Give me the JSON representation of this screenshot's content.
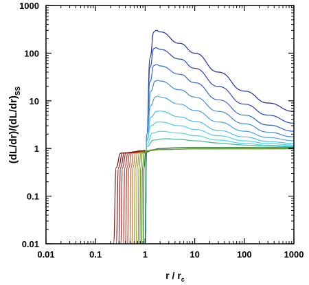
{
  "chart_data": {
    "type": "line",
    "xlabel": {
      "main": "r / r",
      "sub": "c"
    },
    "ylabel": {
      "main": "(dL/dr)/(dL/dr)",
      "sub": "SS"
    },
    "x_scale": "log",
    "y_scale": "log",
    "xlim": [
      0.01,
      1000
    ],
    "ylim": [
      0.01,
      1000
    ],
    "x_ticks": [
      0.01,
      0.1,
      1,
      10,
      100,
      1000
    ],
    "x_tick_labels": [
      "0.01",
      "0.1",
      "1",
      "10",
      "100",
      "1000"
    ],
    "y_ticks": [
      0.01,
      0.1,
      1,
      10,
      100,
      1000
    ],
    "y_tick_labels": [
      "0.01",
      "0.1",
      "1",
      "10",
      "100",
      "1000"
    ],
    "grid": false,
    "legend": "none",
    "series": [
      {
        "color": "#1a2a9a",
        "points": [
          [
            1.0,
            0.01
          ],
          [
            1.08,
            2
          ],
          [
            1.25,
            80
          ],
          [
            1.5,
            280
          ],
          [
            1.65,
            300
          ],
          [
            2,
            280
          ],
          [
            5,
            160
          ],
          [
            10,
            100
          ],
          [
            30,
            40
          ],
          [
            100,
            16
          ],
          [
            300,
            9
          ],
          [
            1000,
            6
          ]
        ]
      },
      {
        "color": "#2244bb",
        "points": [
          [
            1.0,
            0.01
          ],
          [
            1.08,
            2
          ],
          [
            1.25,
            50
          ],
          [
            1.5,
            125
          ],
          [
            1.65,
            130
          ],
          [
            2,
            120
          ],
          [
            5,
            75
          ],
          [
            10,
            48
          ],
          [
            30,
            20
          ],
          [
            100,
            8.5
          ],
          [
            300,
            5
          ],
          [
            1000,
            3.4
          ]
        ]
      },
      {
        "color": "#2e66cc",
        "points": [
          [
            1.0,
            0.01
          ],
          [
            1.08,
            2
          ],
          [
            1.25,
            25
          ],
          [
            1.5,
            55
          ],
          [
            1.7,
            58
          ],
          [
            2,
            54
          ],
          [
            5,
            36
          ],
          [
            10,
            24
          ],
          [
            30,
            10.5
          ],
          [
            100,
            5
          ],
          [
            300,
            3.1
          ],
          [
            1000,
            2.3
          ]
        ]
      },
      {
        "color": "#3a88d8",
        "points": [
          [
            1.0,
            0.01
          ],
          [
            1.08,
            2
          ],
          [
            1.3,
            16
          ],
          [
            1.6,
            26
          ],
          [
            1.8,
            27
          ],
          [
            2,
            26
          ],
          [
            5,
            17
          ],
          [
            10,
            12
          ],
          [
            30,
            6
          ],
          [
            100,
            3.3
          ],
          [
            300,
            2.2
          ],
          [
            1000,
            1.75
          ]
        ]
      },
      {
        "color": "#44a4e0",
        "points": [
          [
            1.0,
            0.01
          ],
          [
            1.08,
            2
          ],
          [
            1.3,
            8
          ],
          [
            1.6,
            12
          ],
          [
            1.8,
            12.5
          ],
          [
            2,
            12
          ],
          [
            5,
            8.5
          ],
          [
            10,
            6.3
          ],
          [
            30,
            3.6
          ],
          [
            100,
            2.3
          ],
          [
            300,
            1.7
          ],
          [
            1000,
            1.45
          ]
        ]
      },
      {
        "color": "#4cbce6",
        "points": [
          [
            1.0,
            0.01
          ],
          [
            1.08,
            1.5
          ],
          [
            1.3,
            4.5
          ],
          [
            1.7,
            6
          ],
          [
            2,
            6.1
          ],
          [
            5,
            4.6
          ],
          [
            10,
            3.7
          ],
          [
            30,
            2.4
          ],
          [
            100,
            1.75
          ],
          [
            300,
            1.4
          ],
          [
            1000,
            1.28
          ]
        ]
      },
      {
        "color": "#52ccea",
        "points": [
          [
            1.0,
            0.01
          ],
          [
            1.08,
            1.4
          ],
          [
            1.3,
            3
          ],
          [
            1.8,
            3.6
          ],
          [
            2,
            3.6
          ],
          [
            5,
            3
          ],
          [
            10,
            2.5
          ],
          [
            30,
            1.85
          ],
          [
            100,
            1.45
          ],
          [
            300,
            1.27
          ],
          [
            1000,
            1.18
          ]
        ]
      },
      {
        "color": "#56d6e4",
        "points": [
          [
            1.0,
            0.01
          ],
          [
            1.08,
            1.2
          ],
          [
            1.4,
            2.1
          ],
          [
            2,
            2.3
          ],
          [
            5,
            2.1
          ],
          [
            10,
            1.85
          ],
          [
            30,
            1.5
          ],
          [
            100,
            1.28
          ],
          [
            300,
            1.17
          ],
          [
            1000,
            1.12
          ]
        ]
      },
      {
        "color": "#46b89a",
        "points": [
          [
            1.0,
            0.01
          ],
          [
            1.08,
            1.1
          ],
          [
            1.5,
            1.5
          ],
          [
            2.5,
            1.6
          ],
          [
            5,
            1.55
          ],
          [
            10,
            1.45
          ],
          [
            30,
            1.3
          ],
          [
            100,
            1.18
          ],
          [
            300,
            1.12
          ],
          [
            1000,
            1.08
          ]
        ]
      },
      {
        "color": "#1e6a3a",
        "points": [
          [
            0.99,
            0.01
          ],
          [
            1.06,
            0.85
          ],
          [
            1.3,
            0.93
          ],
          [
            2,
            1.0
          ],
          [
            5,
            1.04
          ],
          [
            10,
            1.05
          ],
          [
            100,
            1.05
          ],
          [
            1000,
            1.04
          ]
        ]
      },
      {
        "color": "#2a7a2a",
        "points": [
          [
            0.92,
            0.01
          ],
          [
            0.95,
            0.4
          ],
          [
            1.02,
            0.82
          ],
          [
            1.3,
            0.9
          ],
          [
            2,
            0.95
          ],
          [
            10,
            0.98
          ],
          [
            100,
            0.99
          ],
          [
            1000,
            0.99
          ]
        ]
      },
      {
        "color": "#4a8a22",
        "points": [
          [
            0.85,
            0.01
          ],
          [
            0.88,
            0.4
          ],
          [
            0.95,
            0.8
          ],
          [
            1.2,
            0.9
          ],
          [
            2,
            0.95
          ],
          [
            10,
            0.98
          ],
          [
            1000,
            0.99
          ]
        ]
      },
      {
        "color": "#6a9a22",
        "points": [
          [
            0.78,
            0.01
          ],
          [
            0.81,
            0.4
          ],
          [
            0.88,
            0.8
          ],
          [
            1.1,
            0.9
          ],
          [
            2,
            0.95
          ],
          [
            10,
            0.98
          ],
          [
            1000,
            0.99
          ]
        ]
      },
      {
        "color": "#8aa22a",
        "points": [
          [
            0.72,
            0.01
          ],
          [
            0.75,
            0.4
          ],
          [
            0.82,
            0.8
          ],
          [
            1.05,
            0.9
          ],
          [
            2,
            0.95
          ]
        ]
      },
      {
        "color": "#a0a02a",
        "points": [
          [
            0.66,
            0.01
          ],
          [
            0.69,
            0.4
          ],
          [
            0.76,
            0.8
          ],
          [
            1.0,
            0.9
          ]
        ]
      },
      {
        "color": "#b08c2a",
        "points": [
          [
            0.6,
            0.01
          ],
          [
            0.63,
            0.4
          ],
          [
            0.7,
            0.8
          ],
          [
            1.0,
            0.9
          ]
        ]
      },
      {
        "color": "#c0782a",
        "points": [
          [
            0.54,
            0.01
          ],
          [
            0.57,
            0.4
          ],
          [
            0.64,
            0.8
          ],
          [
            1.0,
            0.9
          ]
        ]
      },
      {
        "color": "#c8622a",
        "points": [
          [
            0.49,
            0.01
          ],
          [
            0.52,
            0.4
          ],
          [
            0.58,
            0.8
          ],
          [
            1.0,
            0.9
          ]
        ]
      },
      {
        "color": "#cc4e2a",
        "points": [
          [
            0.44,
            0.01
          ],
          [
            0.47,
            0.4
          ],
          [
            0.53,
            0.8
          ],
          [
            1.0,
            0.9
          ]
        ]
      },
      {
        "color": "#c83a2a",
        "points": [
          [
            0.4,
            0.01
          ],
          [
            0.43,
            0.4
          ],
          [
            0.49,
            0.8
          ],
          [
            1.0,
            0.9
          ]
        ]
      },
      {
        "color": "#c02a2a",
        "points": [
          [
            0.36,
            0.01
          ],
          [
            0.39,
            0.4
          ],
          [
            0.45,
            0.8
          ],
          [
            1.0,
            0.9
          ]
        ]
      },
      {
        "color": "#aa2222",
        "points": [
          [
            0.32,
            0.01
          ],
          [
            0.35,
            0.4
          ],
          [
            0.41,
            0.8
          ],
          [
            1.0,
            0.9
          ]
        ]
      },
      {
        "color": "#961c1c",
        "points": [
          [
            0.29,
            0.01
          ],
          [
            0.32,
            0.4
          ],
          [
            0.38,
            0.8
          ],
          [
            1.0,
            0.9
          ]
        ]
      },
      {
        "color": "#841616",
        "points": [
          [
            0.26,
            0.01
          ],
          [
            0.29,
            0.4
          ],
          [
            0.35,
            0.8
          ],
          [
            1.0,
            0.9
          ]
        ]
      },
      {
        "color": "#701212",
        "points": [
          [
            0.23,
            0.01
          ],
          [
            0.26,
            0.4
          ],
          [
            0.32,
            0.8
          ],
          [
            1.0,
            0.9
          ]
        ]
      }
    ]
  }
}
